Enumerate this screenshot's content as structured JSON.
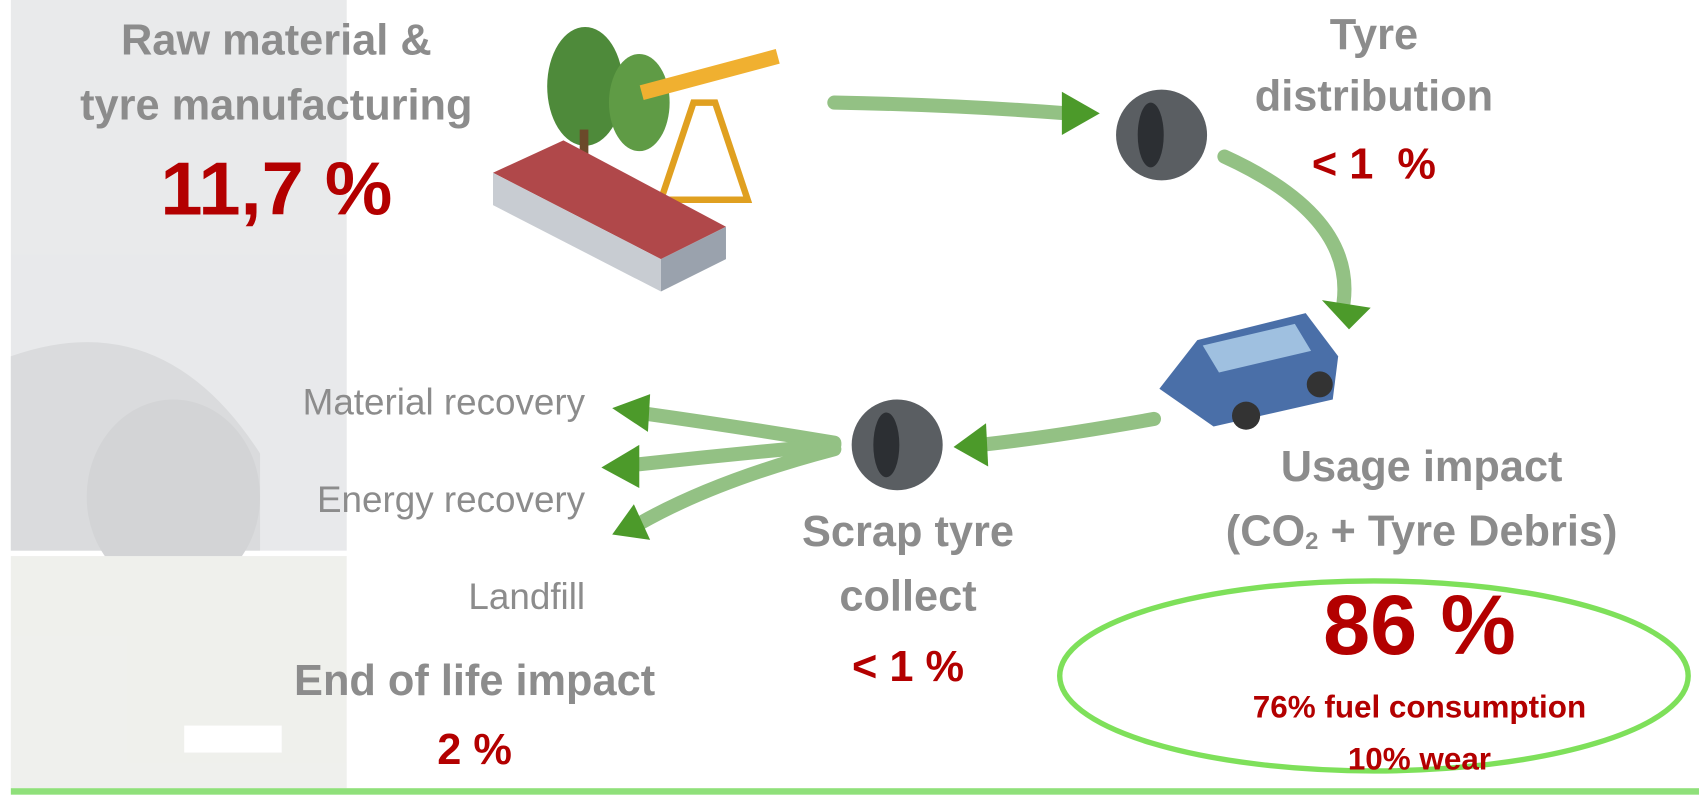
{
  "raw_material": {
    "title_lines": [
      "Raw material &",
      "tyre manufacturing"
    ],
    "share": "11,7 %"
  },
  "distribution": {
    "title_lines": [
      "Tyre",
      "distribution"
    ],
    "share": "< 1  %"
  },
  "usage": {
    "title": "Usage impact",
    "subtitle_parts": [
      "(CO",
      "2",
      " + Tyre Debris)"
    ],
    "share": "86 %",
    "breakdown": [
      "76% fuel consumption",
      "10% wear"
    ]
  },
  "scrap": {
    "title_lines": [
      "Scrap tyre",
      "collect"
    ],
    "share": "< 1 %"
  },
  "end_of_life": {
    "options": [
      "Material recovery",
      "Energy recovery",
      "Landfill"
    ],
    "title": "End of life impact",
    "share": "2 %"
  }
}
